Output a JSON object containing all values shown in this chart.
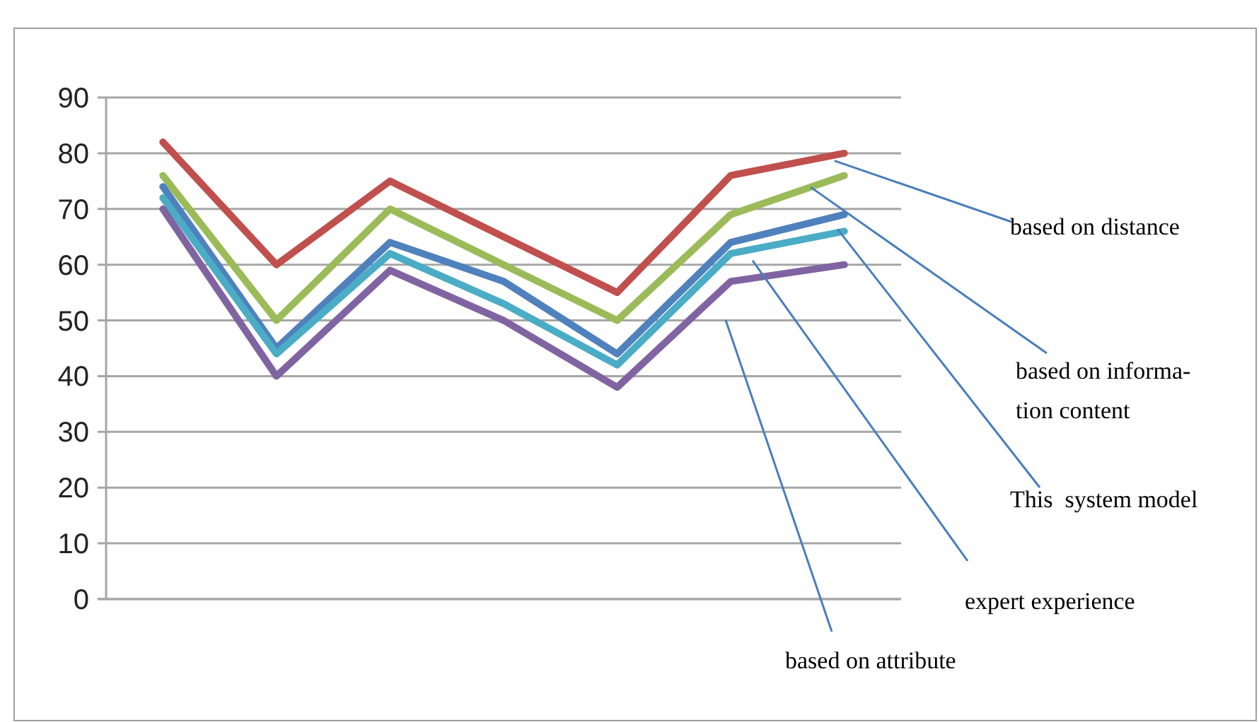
{
  "chart_data": {
    "type": "line",
    "categories": [
      null,
      null,
      null,
      null,
      null,
      null,
      null
    ],
    "ylim": [
      0,
      90
    ],
    "yticks": [
      0,
      10,
      20,
      30,
      40,
      50,
      60,
      70,
      80,
      90
    ],
    "grid": "y",
    "legend": false,
    "marker": "none",
    "line_style": "solid",
    "series": [
      {
        "name": "based on distance",
        "color": "#c0504d",
        "values": [
          82,
          60,
          75,
          65,
          55,
          76,
          80
        ]
      },
      {
        "name": "based on informa-tion content",
        "color": "#9bbb59",
        "values": [
          76,
          50,
          70,
          60,
          50,
          69,
          76
        ]
      },
      {
        "name": "This  system model",
        "color": "#4f81bd",
        "values": [
          74,
          45,
          64,
          57,
          44,
          64,
          69
        ]
      },
      {
        "name": "expert experience",
        "color": "#4bacc6",
        "values": [
          72,
          44,
          62,
          53,
          42,
          62,
          66
        ]
      },
      {
        "name": "based on attribute",
        "color": "#8064a2",
        "values": [
          70,
          40,
          59,
          50,
          38,
          57,
          60
        ]
      }
    ]
  }
}
